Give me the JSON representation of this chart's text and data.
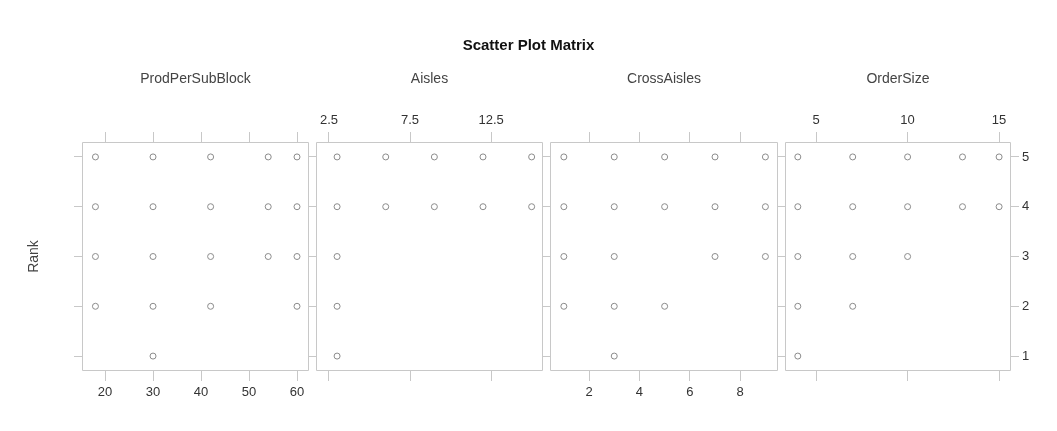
{
  "chart_data": [
    {
      "type": "other",
      "title": "Scatter Plot Matrix"
    },
    {
      "type": "scatter",
      "title": "ProdPerSubBlock",
      "ylabel": "Rank",
      "color": "#8c8c8c",
      "marker": "circle",
      "tick_labels": "x",
      "x": [
        18,
        30,
        42,
        54,
        60,
        18,
        30,
        42,
        54,
        60,
        18,
        30,
        42,
        54,
        60,
        18,
        30,
        42,
        60,
        30
      ],
      "values": [
        5,
        5,
        5,
        5,
        5,
        4,
        4,
        4,
        4,
        4,
        3,
        3,
        3,
        3,
        3,
        2,
        2,
        2,
        2,
        1
      ],
      "xlim": [
        15.2,
        62.5
      ],
      "xticks": [
        20,
        30,
        40,
        50,
        60
      ],
      "ylim": [
        0.7,
        5.3
      ],
      "yticks": [
        1,
        2,
        3,
        4,
        5
      ]
    },
    {
      "type": "scatter",
      "title": "Aisles",
      "color": "#8c8c8c",
      "marker": "circle",
      "tick_labels": "x",
      "x": [
        3,
        6,
        9,
        12,
        15,
        3,
        6,
        9,
        12,
        15,
        3,
        3,
        3
      ],
      "values": [
        5,
        5,
        5,
        5,
        5,
        4,
        4,
        4,
        4,
        4,
        3,
        2,
        1
      ],
      "xlim": [
        1.7,
        15.7
      ],
      "xticks": [
        2.5,
        7.5,
        12.5
      ],
      "ylim": [
        0.7,
        5.3
      ],
      "yticks": [
        1,
        2,
        3,
        4,
        5
      ]
    },
    {
      "type": "scatter",
      "title": "CrossAisles",
      "color": "#8c8c8c",
      "marker": "circle",
      "tick_labels": "x",
      "x": [
        1,
        3,
        5,
        7,
        9,
        1,
        3,
        5,
        7,
        9,
        1,
        3,
        7,
        9,
        1,
        3,
        5,
        3
      ],
      "values": [
        5,
        5,
        5,
        5,
        5,
        4,
        4,
        4,
        4,
        4,
        3,
        3,
        3,
        3,
        2,
        2,
        2,
        1
      ],
      "xlim": [
        0.45,
        9.5
      ],
      "xticks": [
        2,
        4,
        6,
        8
      ],
      "ylim": [
        0.7,
        5.3
      ],
      "yticks": [
        1,
        2,
        3,
        4,
        5
      ]
    },
    {
      "type": "scatter",
      "title": "OrderSize",
      "color": "#8c8c8c",
      "marker": "circle",
      "x": [
        4,
        7,
        10,
        13,
        15,
        4,
        7,
        10,
        13,
        15,
        4,
        7,
        10,
        4,
        7,
        4
      ],
      "values": [
        5,
        5,
        5,
        5,
        5,
        4,
        4,
        4,
        4,
        4,
        3,
        3,
        3,
        2,
        2,
        1
      ],
      "xlim": [
        3.3,
        15.65
      ],
      "xticks": [
        5,
        10,
        15
      ],
      "ylim": [
        0.7,
        5.3
      ],
      "yticks": [
        1,
        2,
        3,
        4,
        5
      ]
    }
  ]
}
